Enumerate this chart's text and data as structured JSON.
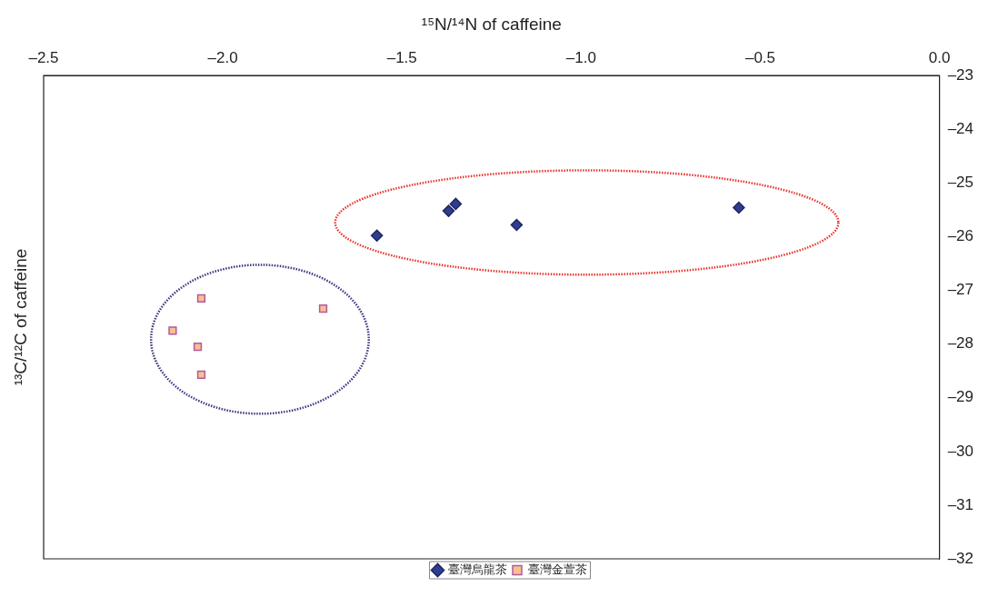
{
  "chart_data": {
    "type": "scatter",
    "xlabel": "¹⁵N/¹⁴N of caffeine",
    "ylabel": "¹³C/¹²C of caffeine",
    "xlim": [
      -2.5,
      0
    ],
    "xticks": [
      {
        "value": -2.5,
        "label": "–2.5"
      },
      {
        "value": -2,
        "label": "–2.0"
      },
      {
        "value": -1.5,
        "label": "–1.5"
      },
      {
        "value": -1,
        "label": "–1.0"
      },
      {
        "value": -0.5,
        "label": "–0.5"
      },
      {
        "value": 0,
        "label": "0.0"
      }
    ],
    "ylim": [
      -32,
      -23
    ],
    "yticks": [
      {
        "value": -23,
        "label": "–23"
      },
      {
        "value": -24,
        "label": "–24"
      },
      {
        "value": -25,
        "label": "–25"
      },
      {
        "value": -26,
        "label": "–26"
      },
      {
        "value": -27,
        "label": "–27"
      },
      {
        "value": -28,
        "label": "–28"
      },
      {
        "value": -29,
        "label": "–29"
      },
      {
        "value": -30,
        "label": "–30"
      },
      {
        "value": -31,
        "label": "–31"
      },
      {
        "value": -32,
        "label": "–32"
      }
    ],
    "grid": false,
    "legend": "bottom",
    "series": [
      {
        "name": "臺灣烏龍茶",
        "color": "#2e3d8f",
        "marker": "diamond",
        "x": [
          -1.57,
          -1.37,
          -1.35,
          -1.18,
          -0.56
        ],
        "values": [
          -25.98,
          -25.52,
          -25.39,
          -25.78,
          -25.46
        ]
      },
      {
        "name": "臺灣金萱茶",
        "color": "#f9c08f",
        "marker": "square",
        "x": [
          -2.06,
          -2.14,
          -2.07,
          -2.06,
          -1.72
        ],
        "values": [
          -27.15,
          -27.75,
          -28.05,
          -28.57,
          -27.34
        ]
      }
    ]
  }
}
